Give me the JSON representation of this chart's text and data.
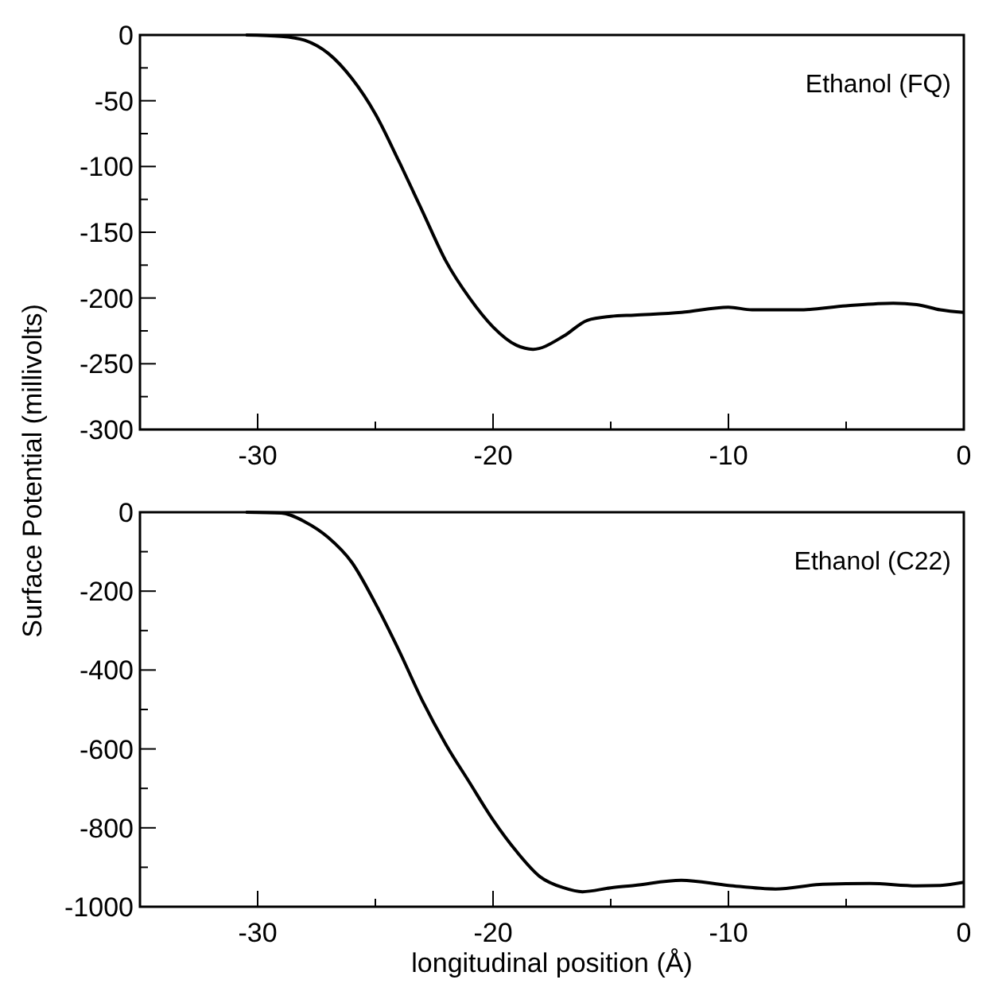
{
  "chart_data": [
    {
      "type": "line",
      "ylabel": "Surface Potential (millivolts)",
      "annotations": [
        "Ethanol (FQ)"
      ],
      "xlim": [
        -35,
        0
      ],
      "ylim": [
        -300,
        0
      ],
      "xticks": [
        -30,
        {
          "value": -25,
          "label": null
        },
        -20,
        {
          "value": -15,
          "label": null
        },
        -10,
        {
          "value": -5,
          "label": null
        },
        0
      ],
      "yticks": [
        0,
        {
          "value": -25,
          "label": null
        },
        -50,
        {
          "value": -75,
          "label": null
        },
        -100,
        {
          "value": -125,
          "label": null
        },
        -150,
        {
          "value": -175,
          "label": null
        },
        -200,
        {
          "value": -225,
          "label": null
        },
        -250,
        {
          "value": -275,
          "label": null
        },
        -300
      ],
      "series": [
        {
          "color": "#000000",
          "x": [
            -30.5,
            -29,
            -28,
            -27,
            -26,
            -25,
            -24,
            -23,
            -22,
            -21,
            -20,
            -19,
            -18.3,
            -17,
            -16,
            -15,
            -14,
            -12,
            -10,
            -9,
            -7,
            -5,
            -3,
            -2,
            -1,
            0
          ],
          "values": [
            0,
            -1,
            -4,
            -14,
            -33,
            -60,
            -96,
            -134,
            -172,
            -200,
            -222,
            -236,
            -239,
            -229,
            -217,
            -214,
            -213,
            -211,
            -207,
            -209,
            -209,
            -206,
            -204,
            -205,
            -209,
            -211
          ]
        }
      ]
    },
    {
      "type": "line",
      "xlabel": "longitudinal position (Å)",
      "annotations": [
        "Ethanol (C22)"
      ],
      "xlim": [
        -35,
        0
      ],
      "ylim": [
        -1000,
        0
      ],
      "xticks": [
        -30,
        {
          "value": -25,
          "label": null
        },
        -20,
        {
          "value": -15,
          "label": null
        },
        -10,
        {
          "value": -5,
          "label": null
        },
        0
      ],
      "yticks": [
        0,
        {
          "value": -100,
          "label": null
        },
        -200,
        {
          "value": -300,
          "label": null
        },
        -400,
        {
          "value": -500,
          "label": null
        },
        -600,
        {
          "value": -700,
          "label": null
        },
        -800,
        {
          "value": -900,
          "label": null
        },
        -1000
      ],
      "series": [
        {
          "color": "#000000",
          "x": [
            -30.5,
            -29,
            -28,
            -27,
            -26,
            -25,
            -24,
            -23,
            -22,
            -21,
            -20,
            -19,
            -18,
            -17,
            -16.2,
            -15,
            -14,
            -12,
            -10,
            -8,
            -6,
            -4,
            -2,
            -1,
            0
          ],
          "values": [
            0,
            -2,
            -24,
            -64,
            -127,
            -231,
            -350,
            -478,
            -589,
            -685,
            -780,
            -860,
            -924,
            -952,
            -962,
            -952,
            -946,
            -933,
            -946,
            -955,
            -943,
            -941,
            -947,
            -946,
            -938
          ]
        }
      ]
    }
  ]
}
